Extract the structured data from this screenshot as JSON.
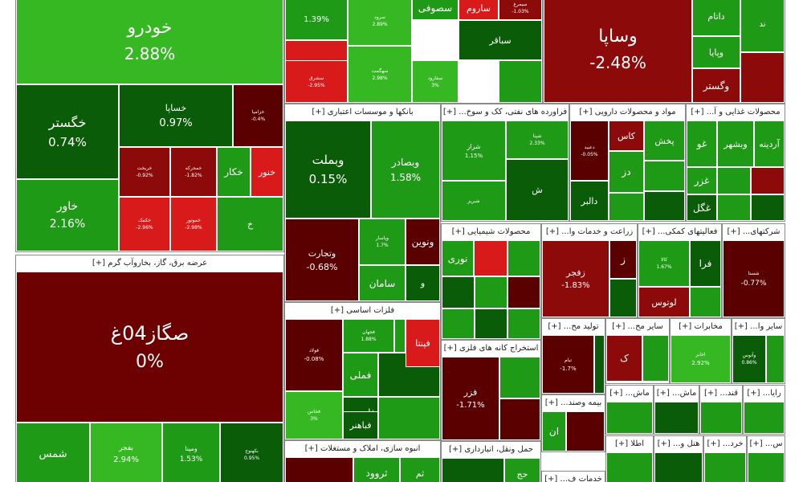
{
  "colors": {
    "up_strong": "#1f9a17",
    "up_bright": "#36b823",
    "up_dark": "#0b5c08",
    "down_dark": "#5a0000",
    "down": "#8d0a0a",
    "down_bright": "#d81a1a",
    "neutral": "#6d0000"
  },
  "chart_data": {
    "type": "treemap",
    "sectors": [
      {
        "name": "",
        "tiles": [
          {
            "name": "خودرو",
            "change": "2.88%",
            "color": "up_bright"
          },
          {
            "name": "خگستر",
            "change": "0.74%",
            "color": "up_dark"
          },
          {
            "name": "خساپا",
            "change": "0.97%",
            "color": "up_dark"
          },
          {
            "name": "خزامیا",
            "change": "-0.4%",
            "color": "down_dark"
          },
          {
            "name": "خاور",
            "change": "2.16%",
            "color": "up_strong"
          },
          {
            "name": "خریخت",
            "change": "-0.92%",
            "color": "down"
          },
          {
            "name": "خمحرکه",
            "change": "-1.82%",
            "color": "down"
          },
          {
            "name": "خکمک",
            "change": "-2.96%",
            "color": "down_bright"
          },
          {
            "name": "خموتور",
            "change": "-2.98%",
            "color": "down_bright"
          },
          {
            "name": "خکار",
            "change": "",
            "color": "up_strong"
          },
          {
            "name": "خنور",
            "change": "",
            "color": "down_bright"
          },
          {
            "name": "خ",
            "change": "",
            "color": "up_strong"
          }
        ]
      },
      {
        "name": "عرضه برق، گاز، بخاروآب گرم",
        "tiles": [
          {
            "name": "صگاز04غ",
            "change": "0%",
            "color": "neutral"
          },
          {
            "name": "شمس",
            "change": "",
            "color": "up_strong"
          },
          {
            "name": "بفجر",
            "change": "2.94%",
            "color": "up_bright"
          },
          {
            "name": "ومپنا",
            "change": "1.53%",
            "color": "up_strong"
          },
          {
            "name": "بکهنوج",
            "change": "0.95%",
            "color": "up_dark"
          }
        ]
      },
      {
        "name": "",
        "tiles": [
          {
            "name": "",
            "change": "1.39%",
            "color": "up_strong"
          },
          {
            "name": "سصوفی",
            "change": "",
            "color": "up_strong"
          },
          {
            "name": "ساروم",
            "change": "",
            "color": "down_bright"
          },
          {
            "name": "سیمرغ",
            "change": "-1.03%",
            "color": "down"
          },
          {
            "name": "سرود",
            "change": "2.89%",
            "color": "up_bright"
          },
          {
            "name": "سباقر",
            "change": "",
            "color": "up_dark"
          },
          {
            "name": "سخزر",
            "change": "",
            "color": "down_bright"
          },
          {
            "name": "سشرق",
            "change": "-2.95%",
            "color": "down_bright"
          },
          {
            "name": "سهگمت",
            "change": "2.98%",
            "color": "up_bright"
          },
          {
            "name": "سفارود",
            "change": "3%",
            "color": "up_bright"
          }
        ]
      },
      {
        "name": "",
        "tiles": [
          {
            "name": "وساپا",
            "change": "-2.48%",
            "color": "down"
          },
          {
            "name": "داتام",
            "change": "",
            "color": "up_strong"
          },
          {
            "name": "وپایا",
            "change": "",
            "color": "up_strong"
          },
          {
            "name": "وگستر",
            "change": "",
            "color": "down"
          },
          {
            "name": "ند",
            "change": "",
            "color": "up_strong"
          }
        ]
      },
      {
        "name": "بانکها و موسسات اعتباری",
        "tiles": [
          {
            "name": "وبملت",
            "change": "0.15%",
            "color": "up_dark"
          },
          {
            "name": "وبصادر",
            "change": "1.58%",
            "color": "up_strong"
          },
          {
            "name": "وتجارت",
            "change": "-0.68%",
            "color": "down_dark"
          },
          {
            "name": "ونوین",
            "change": "",
            "color": "down_dark"
          },
          {
            "name": "وپاسار",
            "change": "1.7%",
            "color": "up_strong"
          },
          {
            "name": "سامان",
            "change": "",
            "color": "up_strong"
          },
          {
            "name": "و",
            "change": "",
            "color": "up_dark"
          }
        ]
      },
      {
        "name": "فراورده های نفتی، کک و سوخ...",
        "tiles": [
          {
            "name": "شراز",
            "change": "1.15%",
            "color": "up_strong"
          },
          {
            "name": "شپنا",
            "change": "2.33%",
            "color": "up_strong"
          },
          {
            "name": "شبریز",
            "change": "",
            "color": "up_strong"
          },
          {
            "name": "ش",
            "change": "",
            "color": "up_dark"
          }
        ]
      },
      {
        "name": "مواد و محصولات دارویی",
        "tiles": [
          {
            "name": "دعبید",
            "change": "-0.05%",
            "color": "down_dark"
          },
          {
            "name": "کاس",
            "change": "",
            "color": "down"
          },
          {
            "name": "پخش",
            "change": "",
            "color": "up_strong"
          },
          {
            "name": "دز",
            "change": "",
            "color": "up_strong"
          },
          {
            "name": "دالبر",
            "change": "",
            "color": "up_dark"
          }
        ]
      },
      {
        "name": "محصولات غذایی و آ...",
        "tiles": [
          {
            "name": "غو",
            "change": "",
            "color": "up_strong"
          },
          {
            "name": "وبشهر",
            "change": "",
            "color": "up_strong"
          },
          {
            "name": "آردینه",
            "change": "",
            "color": "up_strong"
          },
          {
            "name": "غزر",
            "change": "",
            "color": "up_strong"
          },
          {
            "name": "غگل",
            "change": "",
            "color": "up_dark"
          }
        ]
      },
      {
        "name": "عرضه برق، گاز، بخاروآب گرم",
        "tiles": []
      },
      {
        "name": "محصولات شیمیایی",
        "tiles": [
          {
            "name": "نوری",
            "change": "",
            "color": "up_strong"
          }
        ]
      },
      {
        "name": "زراعت و خدمات وا...",
        "tiles": [
          {
            "name": "زفجر",
            "change": "-1.83%",
            "color": "down"
          },
          {
            "name": "ز",
            "change": "",
            "color": "down_dark"
          }
        ]
      },
      {
        "name": "فعالیتهای کمکی...",
        "tiles": [
          {
            "name": "کالا",
            "change": "1.67%",
            "color": "up_strong"
          },
          {
            "name": "فرا",
            "change": "",
            "color": "up_dark"
          },
          {
            "name": "لوتوس",
            "change": "",
            "color": "down"
          }
        ]
      },
      {
        "name": "شرکتهای...",
        "tiles": [
          {
            "name": "شستا",
            "change": "-0.77%",
            "color": "down_dark"
          }
        ]
      },
      {
        "name": "فلزات اساسی",
        "tiles": [
          {
            "name": "فولاد",
            "change": "-0.08%",
            "color": "down_dark"
          },
          {
            "name": "فملی",
            "change": "",
            "color": "up_strong"
          },
          {
            "name": "فپنتا",
            "change": "",
            "color": "down_bright"
          },
          {
            "name": "فاسمین",
            "change": "",
            "color": "up_dark"
          },
          {
            "name": "فباهنر",
            "change": "",
            "color": "up_dark"
          },
          {
            "name": "فخاس",
            "change": "3%",
            "color": "up_bright"
          },
          {
            "name": "فجهان",
            "change": "1.88%",
            "color": "up_strong"
          }
        ]
      },
      {
        "name": "استخراج کانه های فلزی",
        "tiles": [
          {
            "name": "فزر",
            "change": "-1.71%",
            "color": "down_dark"
          }
        ]
      },
      {
        "name": "تولید مح...",
        "tiles": [
          {
            "name": "تیام",
            "change": "-1.7%",
            "color": "down_dark"
          }
        ]
      },
      {
        "name": "سایر مح...",
        "tiles": [
          {
            "name": "ک",
            "change": "",
            "color": "down"
          }
        ]
      },
      {
        "name": "مخابرات",
        "tiles": [
          {
            "name": "اخابر",
            "change": "2.92%",
            "color": "up_bright"
          }
        ]
      },
      {
        "name": "سایر وا...",
        "tiles": [
          {
            "name": "وآتوس",
            "change": "0.86%",
            "color": "up_dark"
          }
        ]
      },
      {
        "name": "بیمه وصند...",
        "tiles": [
          {
            "name": "ان",
            "change": "",
            "color": "up_strong"
          }
        ]
      },
      {
        "name": "ماش...",
        "tiles": []
      },
      {
        "name": "ماش...",
        "tiles": []
      },
      {
        "name": "قند...",
        "tiles": []
      },
      {
        "name": "رایا...",
        "tiles": []
      },
      {
        "name": "انبوه سازی، املاک و مستغلات",
        "tiles": [
          {
            "name": "ثروود",
            "change": "",
            "color": "up_strong"
          },
          {
            "name": "ثم",
            "change": "",
            "color": "up_strong"
          }
        ]
      },
      {
        "name": "حمل ونقل، انبارداری",
        "tiles": [
          {
            "name": "حج",
            "change": "",
            "color": "up_strong"
          }
        ]
      },
      {
        "name": "اطلا",
        "tiles": []
      },
      {
        "name": "هتل و...",
        "tiles": []
      },
      {
        "name": "خرد...",
        "tiles": []
      },
      {
        "name": "س...",
        "tiles": []
      },
      {
        "name": "خدمات ف...",
        "tiles": []
      }
    ]
  }
}
